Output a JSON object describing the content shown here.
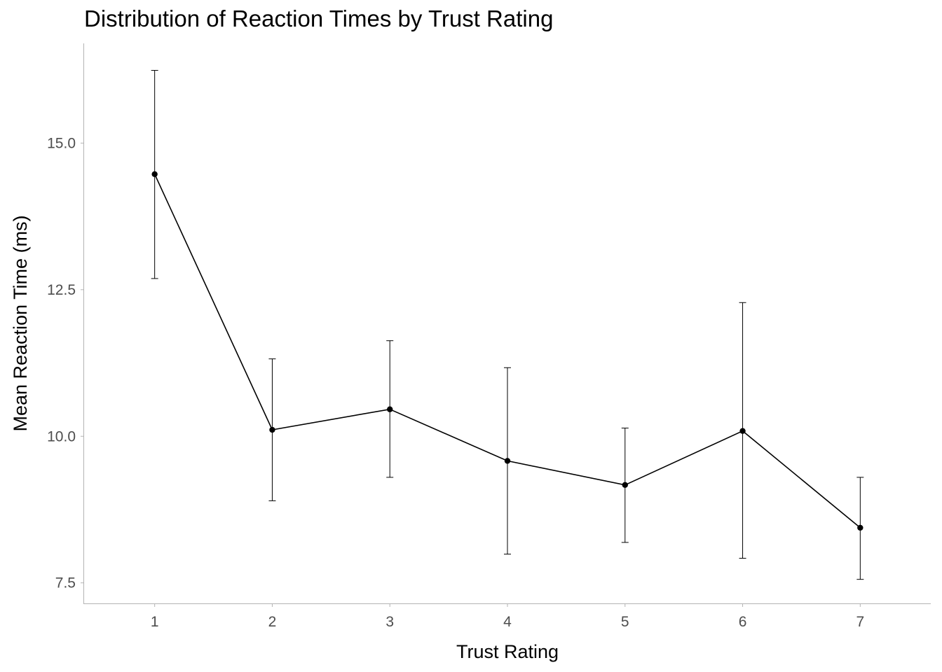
{
  "chart_data": {
    "type": "line",
    "title": "Distribution of Reaction Times by Trust Rating",
    "xlabel": "Trust Rating",
    "ylabel": "Mean Reaction Time (ms)",
    "x": [
      1,
      2,
      3,
      4,
      5,
      6,
      7
    ],
    "x_tick_labels": [
      "1",
      "2",
      "3",
      "4",
      "5",
      "6",
      "7"
    ],
    "y_ticks": [
      7.5,
      10.0,
      12.5,
      15.0
    ],
    "y_tick_labels": [
      "7.5",
      "10.0",
      "12.5",
      "15.0"
    ],
    "xlim": [
      0.4,
      7.6
    ],
    "ylim": [
      7.15,
      16.7
    ],
    "series": [
      {
        "values": [
          14.47,
          10.11,
          10.46,
          9.58,
          9.17,
          10.09,
          8.44
        ],
        "error_low": [
          12.69,
          8.9,
          9.3,
          7.99,
          8.19,
          7.92,
          7.56
        ],
        "error_high": [
          16.24,
          11.32,
          11.63,
          11.17,
          10.14,
          12.28,
          9.3
        ]
      }
    ],
    "line_color": "#000000",
    "axis_color": "#b3b3b3",
    "grid": false
  }
}
